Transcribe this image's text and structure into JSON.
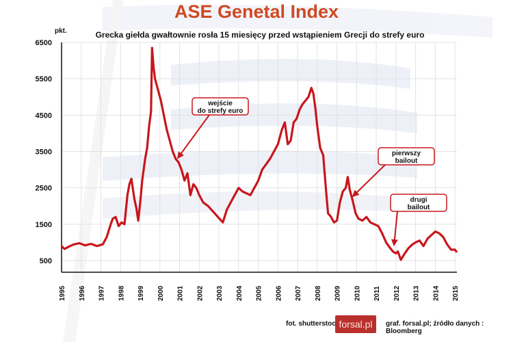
{
  "chart_data": {
    "type": "line",
    "title": "ASE Genetal Index",
    "subtitle": "Grecka giełda gwałtownie rosła 15 miesięcy przed wstąpieniem Grecji do strefy euro",
    "ylabel": "pkt.",
    "xlabel": "",
    "ylim": [
      180,
      6500
    ],
    "xlim": [
      1995,
      2015.1
    ],
    "yticks": [
      500,
      1500,
      2500,
      3500,
      4500,
      5500,
      6500
    ],
    "xticks": [
      "1995",
      "1996",
      "1997",
      "1998",
      "1999",
      "2000",
      "2001",
      "2002",
      "2003",
      "2004",
      "2005",
      "2006",
      "2007",
      "2008",
      "2009",
      "2010",
      "2011",
      "2012",
      "2013",
      "2014",
      "2015"
    ],
    "grid": true,
    "line_color": "#c8161d",
    "x": [
      1995.0,
      1995.15,
      1995.35,
      1995.6,
      1995.9,
      1996.2,
      1996.5,
      1996.8,
      1997.1,
      1997.3,
      1997.5,
      1997.6,
      1997.75,
      1997.9,
      1998.05,
      1998.2,
      1998.35,
      1998.45,
      1998.55,
      1998.7,
      1998.8,
      1998.9,
      1999.0,
      1999.1,
      1999.25,
      1999.35,
      1999.45,
      1999.55,
      1999.6,
      1999.68,
      1999.75,
      1999.85,
      1999.95,
      2000.05,
      2000.2,
      2000.35,
      2000.5,
      2000.65,
      2000.8,
      2000.95,
      2001.1,
      2001.25,
      2001.4,
      2001.55,
      2001.7,
      2001.85,
      2002.0,
      2002.2,
      2002.45,
      2002.7,
      2002.95,
      2003.2,
      2003.4,
      2003.6,
      2003.8,
      2004.0,
      2004.2,
      2004.4,
      2004.6,
      2004.8,
      2005.0,
      2005.2,
      2005.4,
      2005.6,
      2005.8,
      2006.0,
      2006.2,
      2006.35,
      2006.5,
      2006.65,
      2006.8,
      2006.95,
      2007.1,
      2007.25,
      2007.4,
      2007.55,
      2007.7,
      2007.8,
      2007.9,
      2008.0,
      2008.15,
      2008.3,
      2008.45,
      2008.55,
      2008.7,
      2008.85,
      2009.0,
      2009.15,
      2009.3,
      2009.45,
      2009.55,
      2009.65,
      2009.8,
      2009.95,
      2010.1,
      2010.3,
      2010.5,
      2010.7,
      2010.9,
      2011.1,
      2011.3,
      2011.5,
      2011.7,
      2011.85,
      2012.0,
      2012.1,
      2012.25,
      2012.45,
      2012.65,
      2012.85,
      2013.0,
      2013.2,
      2013.4,
      2013.6,
      2013.8,
      2014.0,
      2014.2,
      2014.4,
      2014.6,
      2014.8,
      2015.0,
      2015.1
    ],
    "values": [
      900,
      820,
      880,
      940,
      980,
      920,
      960,
      900,
      950,
      1150,
      1500,
      1650,
      1700,
      1450,
      1550,
      1500,
      2300,
      2600,
      2750,
      2200,
      1950,
      1600,
      2100,
      2700,
      3300,
      3600,
      4200,
      4600,
      6350,
      5800,
      5500,
      5300,
      5100,
      4900,
      4500,
      4100,
      3800,
      3500,
      3300,
      3200,
      3000,
      2700,
      2900,
      2300,
      2600,
      2500,
      2300,
      2100,
      2000,
      1850,
      1700,
      1550,
      1900,
      2100,
      2300,
      2500,
      2400,
      2350,
      2300,
      2500,
      2700,
      3000,
      3150,
      3300,
      3500,
      3700,
      4100,
      4300,
      3700,
      3800,
      4300,
      4400,
      4650,
      4800,
      4900,
      5000,
      5250,
      5100,
      4700,
      4200,
      3600,
      3400,
      2400,
      1800,
      1700,
      1550,
      1600,
      2100,
      2400,
      2500,
      2800,
      2450,
      2150,
      1800,
      1650,
      1600,
      1700,
      1550,
      1500,
      1450,
      1250,
      1000,
      850,
      750,
      700,
      750,
      520,
      700,
      850,
      950,
      1000,
      1050,
      900,
      1100,
      1200,
      1300,
      1250,
      1150,
      950,
      800,
      800,
      730
    ],
    "annotations": [
      {
        "text_line1": "wejście",
        "text_line2": "do strefy euro",
        "x": 2000.9,
        "y": 3200
      },
      {
        "text_line1": "pierwszy",
        "text_line2": "bailout",
        "x": 2009.8,
        "y": 2150
      },
      {
        "text_line1": "drugi",
        "text_line2": "bailout",
        "x": 2011.9,
        "y": 800
      }
    ]
  },
  "footer": {
    "photo_credit": "fot. shutterstock",
    "logo_text": "forsal.pl",
    "source": "graf. forsal.pl;  źródło danych : Bloomberg"
  }
}
